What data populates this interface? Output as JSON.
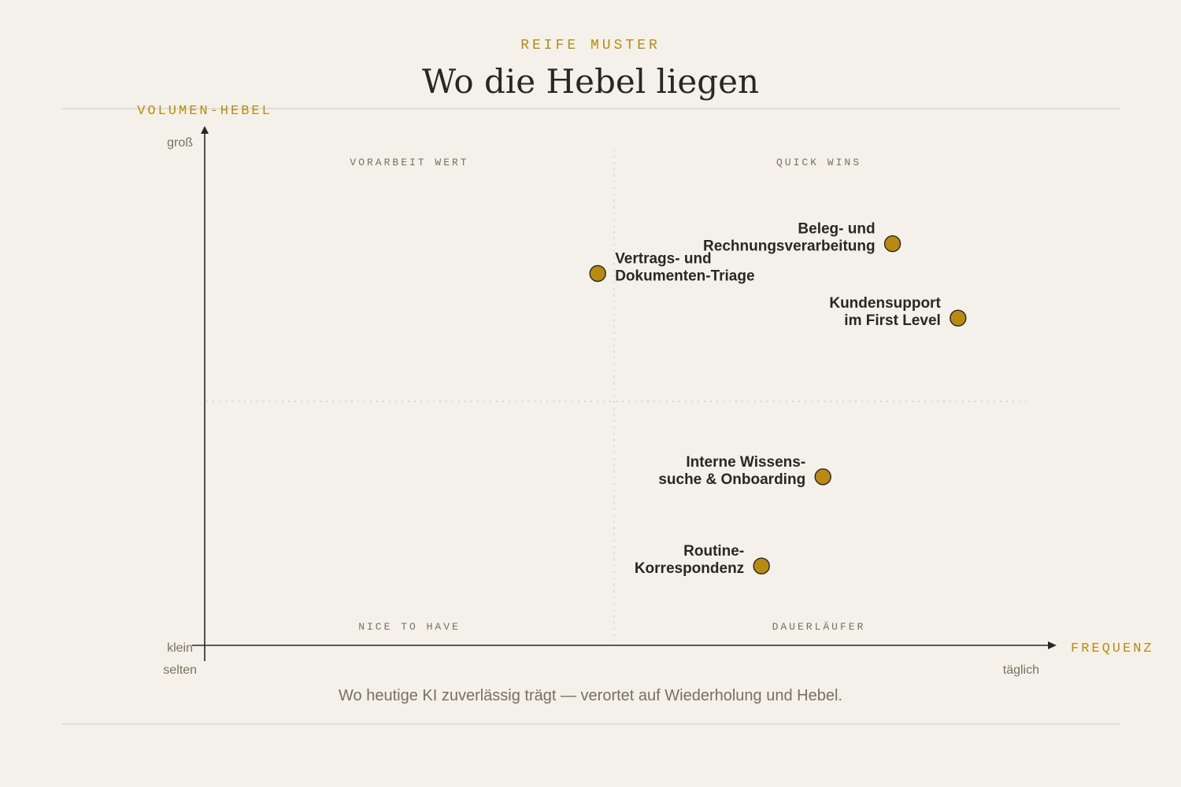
{
  "header": {
    "eyebrow": "REIFE MUSTER",
    "title": "Wo die Hebel liegen"
  },
  "colors": {
    "background": "#f4f1ea",
    "accent": "#b88a14",
    "ink": "#2a2620",
    "muted": "#7a6f5e",
    "rule": "#dcd8cc"
  },
  "chart_data": {
    "type": "scatter",
    "title": "Wo die Hebel liegen",
    "xlabel": "FREQUENZ",
    "ylabel": "VOLUMEN-HEBEL",
    "x_ticks": {
      "min": "selten",
      "max": "täglich"
    },
    "y_ticks": {
      "min": "klein",
      "max": "groß"
    },
    "xlim": [
      0,
      1
    ],
    "ylim": [
      0,
      1
    ],
    "grid": false,
    "quadrants": {
      "top_left": "VORARBEIT WERT",
      "top_right": "QUICK WINS",
      "bottom_left": "NICE TO HAVE",
      "bottom_right": "DAUERLÄUFER"
    },
    "points": [
      {
        "label": [
          "Beleg- und",
          "Rechnungsverarbeitung"
        ],
        "x": 0.84,
        "y": 0.81,
        "label_side": "left"
      },
      {
        "label": [
          "Vertrags- und",
          "Dokumenten-Triage"
        ],
        "x": 0.48,
        "y": 0.75,
        "label_side": "right"
      },
      {
        "label": [
          "Kundensupport",
          "im First Level"
        ],
        "x": 0.92,
        "y": 0.66,
        "label_side": "left"
      },
      {
        "label": [
          "Interne Wissens-",
          "suche & Onboarding"
        ],
        "x": 0.755,
        "y": 0.34,
        "label_side": "left"
      },
      {
        "label": [
          "Routine-",
          "Korrespondenz"
        ],
        "x": 0.68,
        "y": 0.16,
        "label_side": "left"
      }
    ]
  },
  "caption": "Wo heutige KI zuverlässig trägt — verortet auf Wiederholung und Hebel."
}
